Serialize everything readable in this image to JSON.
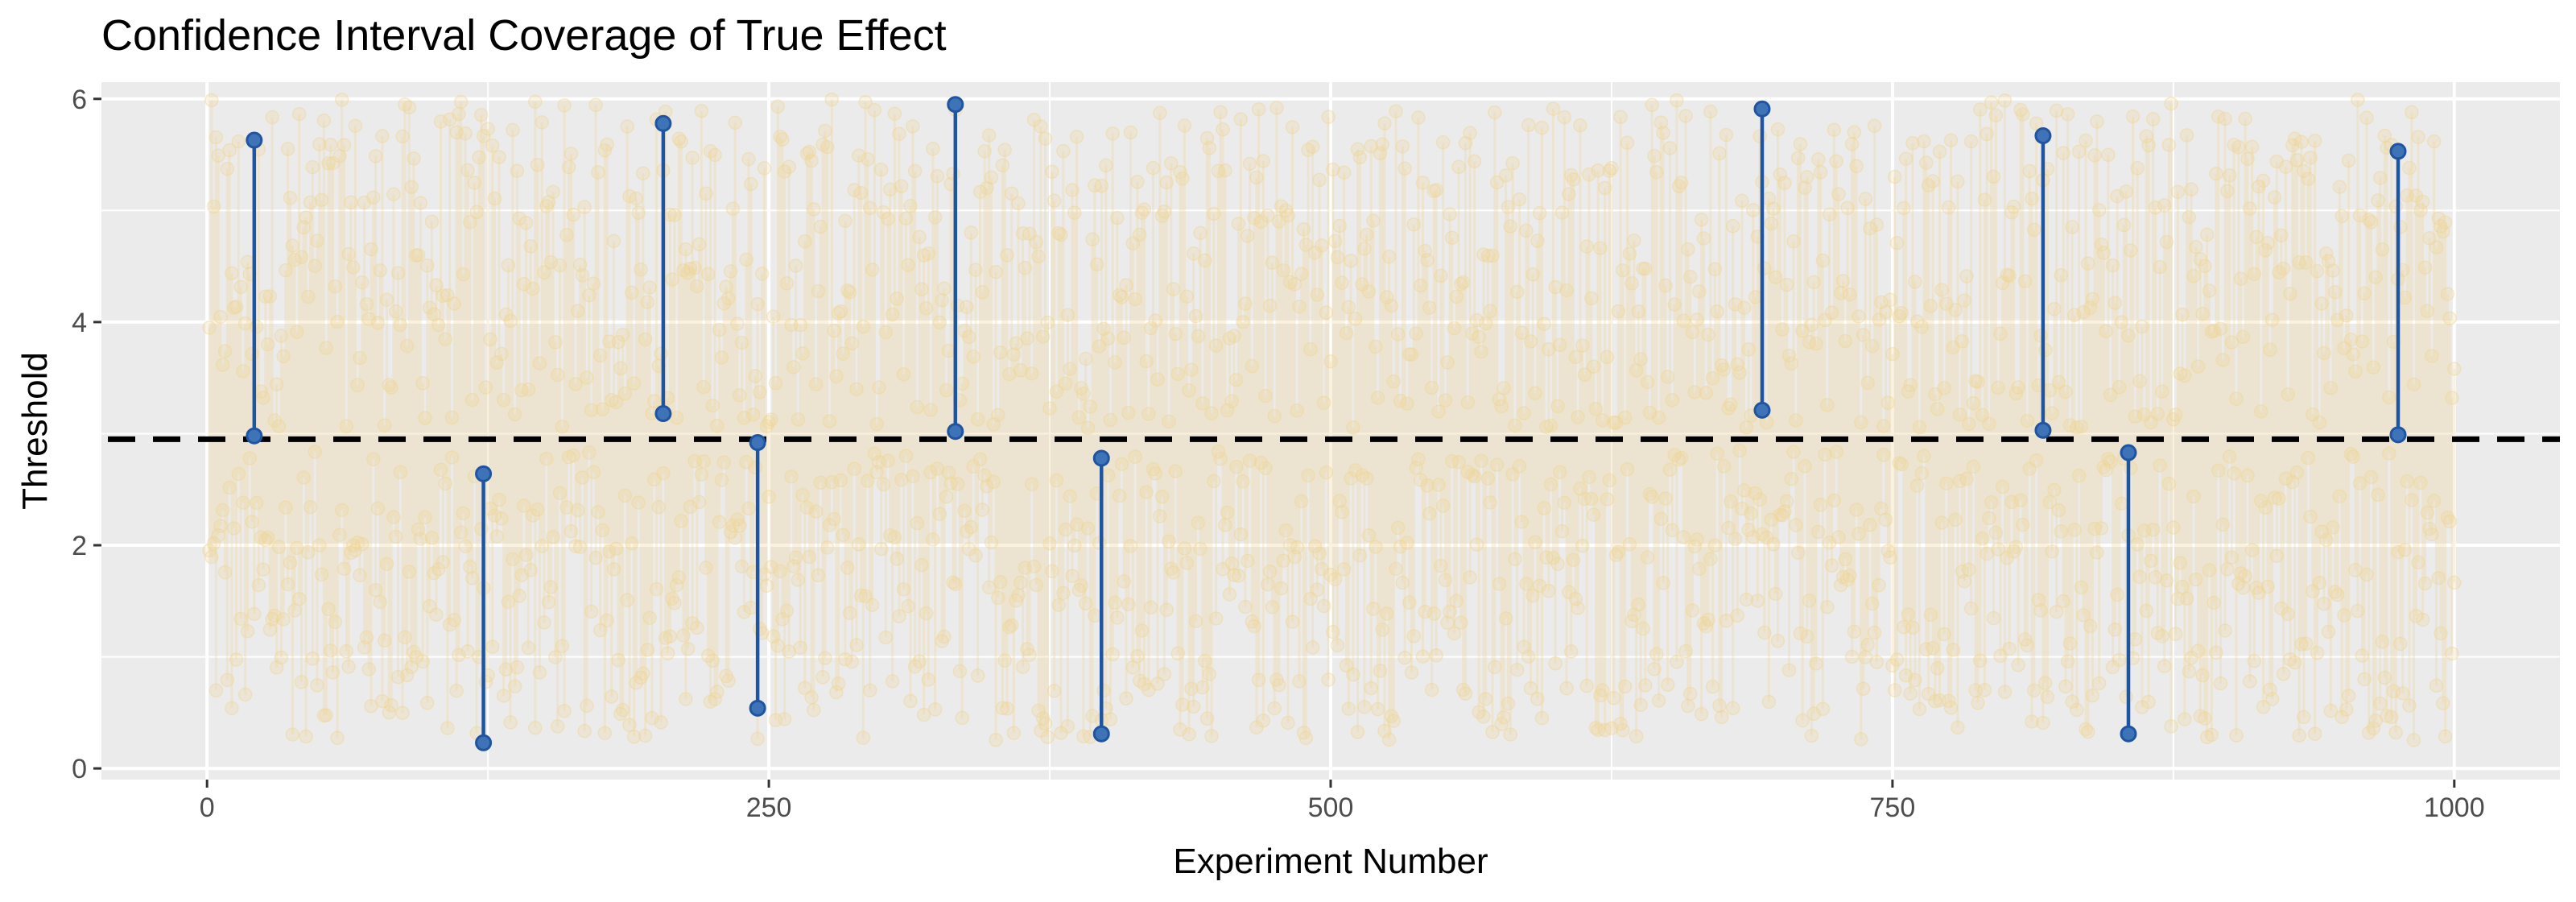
{
  "chart_data": {
    "type": "scatter",
    "title": "Confidence Interval Coverage of True Effect",
    "xlabel": "Experiment Number",
    "ylabel": "Threshold",
    "xlim": [
      -47,
      1047
    ],
    "ylim": [
      -0.1,
      6.15
    ],
    "x_ticks": [
      0,
      250,
      500,
      750,
      1000
    ],
    "y_ticks": [
      0,
      2,
      4,
      6
    ],
    "grid": true,
    "legend": "none",
    "true_effect": 2.95,
    "n_experiments": 1000,
    "series": [
      {
        "role": "covering intervals",
        "color": "#f0d493",
        "note": "background intervals that contain the true effect; drawn faded"
      },
      {
        "role": "missing intervals",
        "color": "#1f54a0",
        "intervals": [
          {
            "x": 21,
            "lower": 2.98,
            "upper": 5.63
          },
          {
            "x": 123,
            "lower": 0.23,
            "upper": 2.64
          },
          {
            "x": 203,
            "lower": 3.18,
            "upper": 5.78
          },
          {
            "x": 245,
            "lower": 0.54,
            "upper": 2.92
          },
          {
            "x": 333,
            "lower": 3.02,
            "upper": 5.95
          },
          {
            "x": 398,
            "lower": 0.31,
            "upper": 2.78
          },
          {
            "x": 692,
            "lower": 3.21,
            "upper": 5.91
          },
          {
            "x": 817,
            "lower": 3.03,
            "upper": 5.67
          },
          {
            "x": 855,
            "lower": 0.31,
            "upper": 2.83
          },
          {
            "x": 975,
            "lower": 2.99,
            "upper": 5.53
          }
        ]
      }
    ]
  },
  "colors": {
    "panel_background": "#ebebeb",
    "grid": "#ffffff",
    "reference_line": "#000000",
    "covering": "#f0d493",
    "missing": "#1f54a0"
  }
}
